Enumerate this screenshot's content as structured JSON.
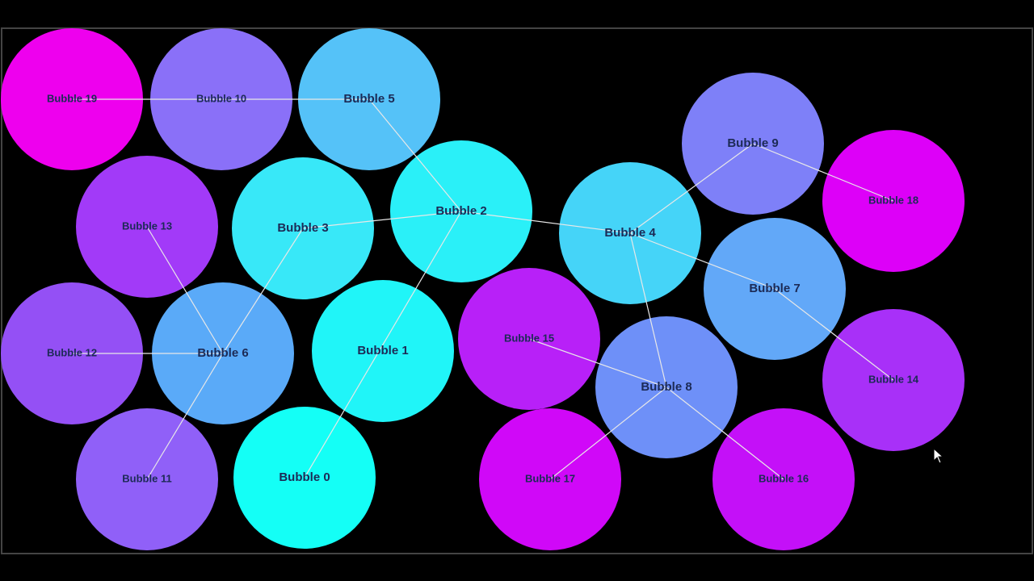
{
  "nodes": [
    {
      "label": "Bubble 0",
      "color": "#14fff6"
    },
    {
      "label": "Bubble 1",
      "color": "#20f5f8"
    },
    {
      "label": "Bubble 2",
      "color": "#2af0f8"
    },
    {
      "label": "Bubble 3",
      "color": "#38e8f8"
    },
    {
      "label": "Bubble 4",
      "color": "#45d4f8"
    },
    {
      "label": "Bubble 5",
      "color": "#55c2f8"
    },
    {
      "label": "Bubble 6",
      "color": "#5aaaf8"
    },
    {
      "label": "Bubble 7",
      "color": "#62a8f8"
    },
    {
      "label": "Bubble 8",
      "color": "#6e90f8"
    },
    {
      "label": "Bubble 9",
      "color": "#7e80f8"
    },
    {
      "label": "Bubble 10",
      "color": "#8a70f8"
    },
    {
      "label": "Bubble 11",
      "color": "#9060f8"
    },
    {
      "label": "Bubble 12",
      "color": "#9450f5"
    },
    {
      "label": "Bubble 13",
      "color": "#a23af8"
    },
    {
      "label": "Bubble 14",
      "color": "#a830f8"
    },
    {
      "label": "Bubble 15",
      "color": "#b820f8"
    },
    {
      "label": "Bubble 16",
      "color": "#c410f8"
    },
    {
      "label": "Bubble 17",
      "color": "#d008f8"
    },
    {
      "label": "Bubble 18",
      "color": "#dd00f8"
    },
    {
      "label": "Bubble 19",
      "color": "#ee00ee"
    }
  ]
}
